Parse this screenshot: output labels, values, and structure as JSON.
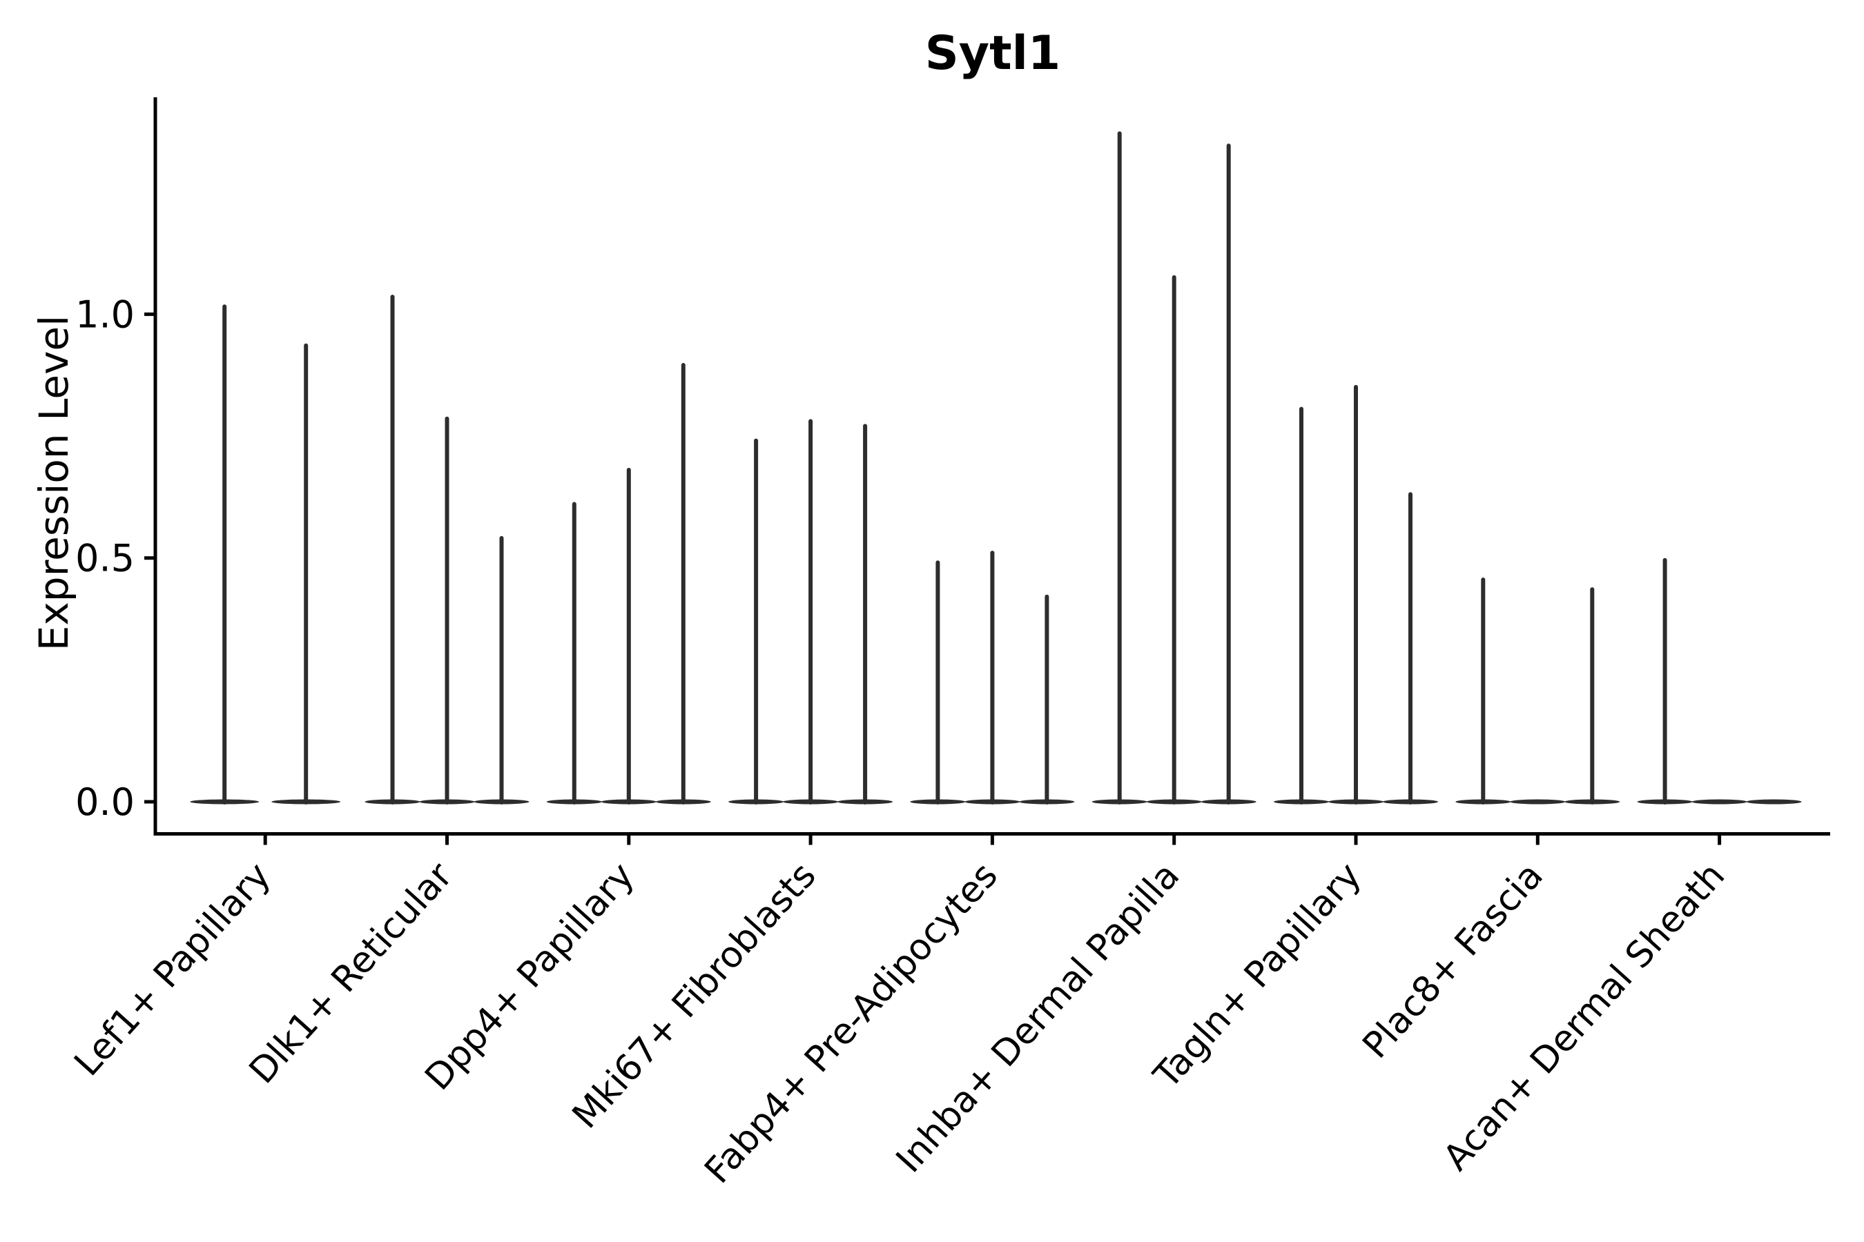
{
  "chart_data": {
    "type": "violin",
    "title": "Sytl1",
    "ylabel": "Expression Level",
    "xlabel": "",
    "grid": false,
    "legend": "none",
    "ylim": [
      -0.066,
      1.445
    ],
    "yticks": [
      {
        "label": "0.0",
        "value": 0.0
      },
      {
        "label": "0.5",
        "value": 0.5
      },
      {
        "label": "1.0",
        "value": 1.0
      }
    ],
    "categories": [
      "Lef1+ Papillary",
      "Dlk1+ Reticular",
      "Dpp4+ Papillary",
      "Mki67+ Fibroblasts",
      "Fabp4+ Pre-Adipocytes",
      "Inhba+ Dermal Papilla",
      "Tagln+ Papillary",
      "Plac8+ Fascia",
      "Acan+ Dermal Sheath"
    ],
    "groups": [
      {
        "category": "Lef1+ Papillary",
        "violins": [
          {
            "offset": -59,
            "max": 1.02
          },
          {
            "offset": 59,
            "max": 0.94
          }
        ]
      },
      {
        "category": "Dlk1+ Reticular",
        "violins": [
          {
            "offset": -79,
            "max": 1.04
          },
          {
            "offset": 0,
            "max": 0.79
          },
          {
            "offset": 79,
            "max": 0.545
          }
        ]
      },
      {
        "category": "Dpp4+ Papillary",
        "violins": [
          {
            "offset": -79,
            "max": 0.615
          },
          {
            "offset": 0,
            "max": 0.685
          },
          {
            "offset": 79,
            "max": 0.9
          }
        ]
      },
      {
        "category": "Mki67+ Fibroblasts",
        "violins": [
          {
            "offset": -79,
            "max": 0.745
          },
          {
            "offset": 0,
            "max": 0.785
          },
          {
            "offset": 79,
            "max": 0.775
          }
        ]
      },
      {
        "category": "Fabp4+ Pre-Adipocytes",
        "violins": [
          {
            "offset": -79,
            "max": 0.495
          },
          {
            "offset": 0,
            "max": 0.515
          },
          {
            "offset": 79,
            "max": 0.425
          }
        ]
      },
      {
        "category": "Inhba+ Dermal Papilla",
        "violins": [
          {
            "offset": -79,
            "max": 1.375
          },
          {
            "offset": 0,
            "max": 1.08
          },
          {
            "offset": 79,
            "max": 1.35
          }
        ]
      },
      {
        "category": "Tagln+ Papillary",
        "violins": [
          {
            "offset": -79,
            "max": 0.81
          },
          {
            "offset": 0,
            "max": 0.855
          },
          {
            "offset": 79,
            "max": 0.635
          }
        ]
      },
      {
        "category": "Plac8+ Fascia",
        "violins": [
          {
            "offset": -79,
            "max": 0.46
          },
          {
            "offset": 0,
            "max": 0.0
          },
          {
            "offset": 79,
            "max": 0.44
          }
        ]
      },
      {
        "category": "Acan+ Dermal Sheath",
        "violins": [
          {
            "offset": -79,
            "max": 0.5
          },
          {
            "offset": 0,
            "max": 0.0
          },
          {
            "offset": 79,
            "max": 0.0
          }
        ]
      }
    ],
    "colors": {
      "violin": "#2d2d2d",
      "axis": "#000000",
      "text": "#000000",
      "background": "#ffffff"
    },
    "x_tick_label_rotation_deg": 48
  }
}
